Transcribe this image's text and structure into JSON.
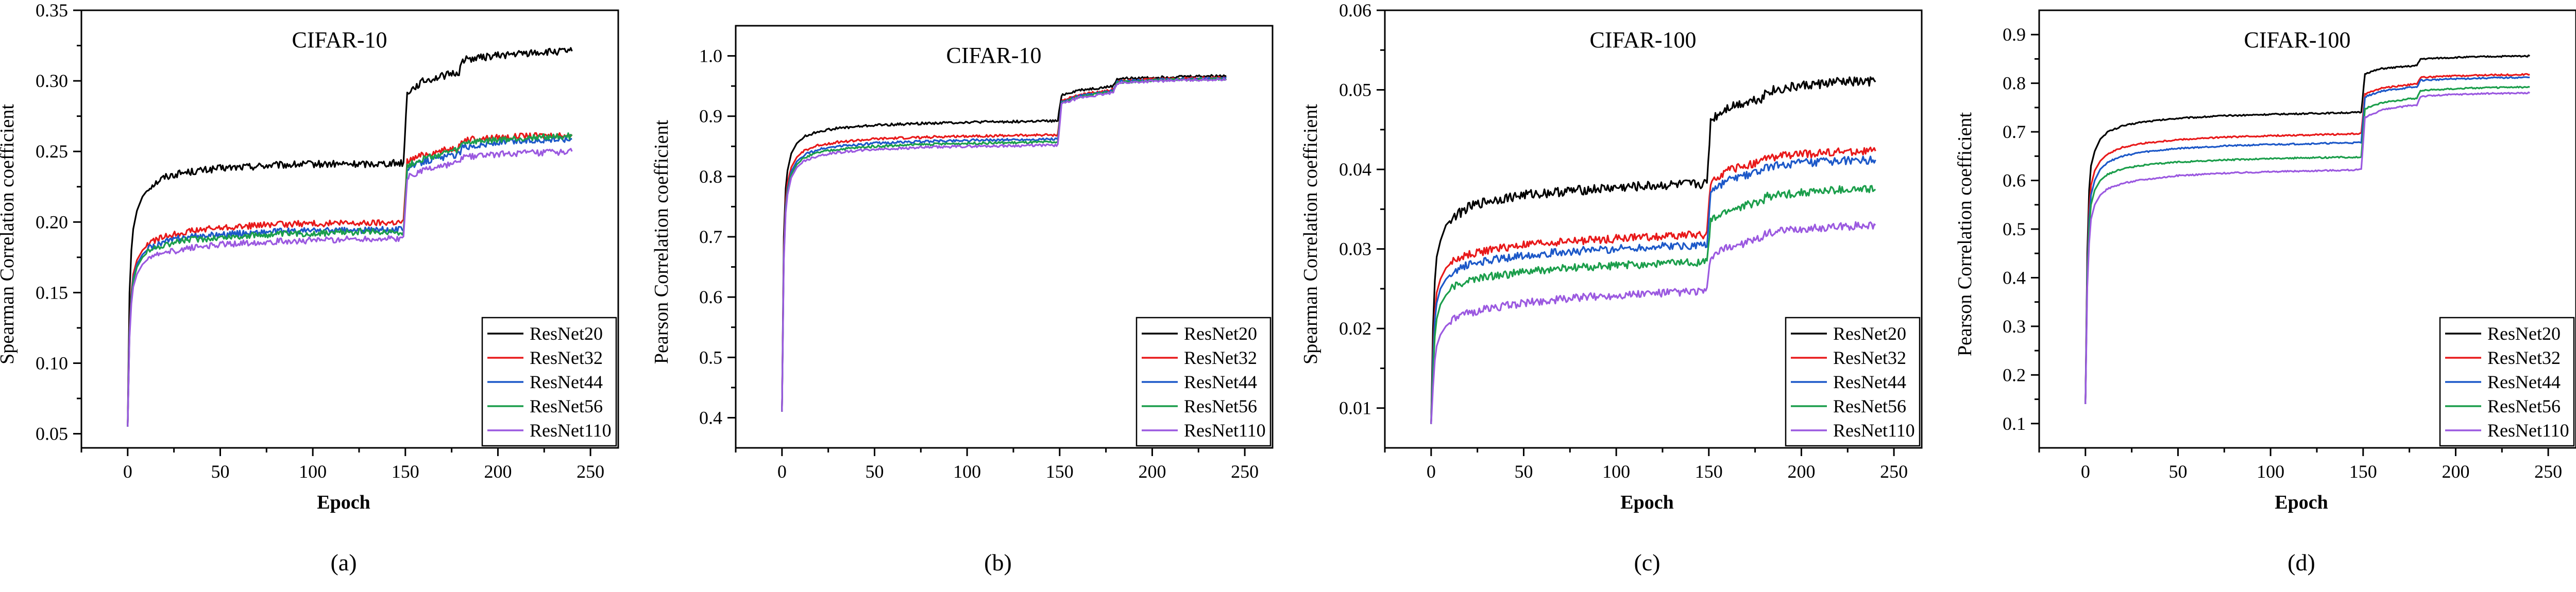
{
  "chart_data": [
    {
      "type": "line",
      "title": "CIFAR-10",
      "xlabel": "Epoch",
      "ylabel": "Spearman Correlation coefficient",
      "panel_label": "(a)",
      "xlim": [
        -25,
        265
      ],
      "ylim": [
        0.04,
        0.35
      ],
      "xticks": [
        "0",
        "50",
        "100",
        "150",
        "200",
        "250"
      ],
      "yticks": [
        "0.05",
        "0.10",
        "0.15",
        "0.20",
        "0.25",
        "0.30",
        "0.35"
      ],
      "ytick_values": [
        0.05,
        0.1,
        0.15,
        0.2,
        0.25,
        0.3,
        0.35
      ],
      "legend_position": "bottom-right",
      "x": [
        0,
        1,
        2,
        3,
        5,
        8,
        12,
        20,
        30,
        50,
        75,
        100,
        125,
        149,
        151,
        160,
        175,
        179,
        181,
        200,
        220,
        240
      ],
      "series": [
        {
          "name": "ResNet20",
          "color": "#000000",
          "noise": 0.0025,
          "values": [
            0.055,
            0.15,
            0.18,
            0.195,
            0.208,
            0.218,
            0.225,
            0.232,
            0.235,
            0.238,
            0.24,
            0.241,
            0.241,
            0.242,
            0.292,
            0.3,
            0.305,
            0.306,
            0.315,
            0.318,
            0.32,
            0.321
          ]
        },
        {
          "name": "ResNet32",
          "color": "#e8191a",
          "noise": 0.0022,
          "values": [
            0.055,
            0.125,
            0.15,
            0.163,
            0.173,
            0.18,
            0.185,
            0.19,
            0.193,
            0.196,
            0.198,
            0.199,
            0.199,
            0.2,
            0.243,
            0.248,
            0.252,
            0.253,
            0.258,
            0.26,
            0.261,
            0.262
          ]
        },
        {
          "name": "ResNet44",
          "color": "#1c58c8",
          "noise": 0.0022,
          "values": [
            0.055,
            0.122,
            0.147,
            0.16,
            0.17,
            0.177,
            0.182,
            0.186,
            0.189,
            0.191,
            0.193,
            0.194,
            0.194,
            0.195,
            0.238,
            0.243,
            0.247,
            0.248,
            0.253,
            0.256,
            0.258,
            0.259
          ]
        },
        {
          "name": "ResNet56",
          "color": "#1b9e4b",
          "noise": 0.0022,
          "values": [
            0.055,
            0.12,
            0.145,
            0.158,
            0.168,
            0.175,
            0.18,
            0.184,
            0.187,
            0.189,
            0.191,
            0.192,
            0.193,
            0.193,
            0.24,
            0.245,
            0.25,
            0.251,
            0.256,
            0.258,
            0.26,
            0.261
          ]
        },
        {
          "name": "ResNet110",
          "color": "#9b59e0",
          "noise": 0.0022,
          "values": [
            0.055,
            0.118,
            0.142,
            0.154,
            0.163,
            0.17,
            0.175,
            0.178,
            0.181,
            0.184,
            0.186,
            0.187,
            0.188,
            0.188,
            0.232,
            0.237,
            0.241,
            0.242,
            0.246,
            0.248,
            0.249,
            0.25
          ]
        }
      ]
    },
    {
      "type": "line",
      "title": "CIFAR-10",
      "xlabel": "",
      "ylabel": "Pearson Correlation coefficient",
      "panel_label": "(b)",
      "xlim": [
        -25,
        265
      ],
      "ylim": [
        0.35,
        1.05
      ],
      "xticks": [
        "0",
        "50",
        "100",
        "150",
        "200",
        "250"
      ],
      "yticks": [
        "0.4",
        "0.5",
        "0.6",
        "0.7",
        "0.8",
        "0.9",
        "1.0"
      ],
      "ytick_values": [
        0.4,
        0.5,
        0.6,
        0.7,
        0.8,
        0.9,
        1.0
      ],
      "legend_position": "bottom-right",
      "x": [
        0,
        1,
        2,
        3,
        5,
        8,
        12,
        20,
        30,
        50,
        75,
        100,
        125,
        149,
        151,
        160,
        175,
        179,
        181,
        200,
        220,
        240
      ],
      "series": [
        {
          "name": "ResNet20",
          "color": "#000000",
          "noise": 0.002,
          "values": [
            0.41,
            0.7,
            0.78,
            0.81,
            0.838,
            0.855,
            0.866,
            0.875,
            0.88,
            0.885,
            0.888,
            0.89,
            0.891,
            0.892,
            0.935,
            0.943,
            0.948,
            0.95,
            0.962,
            0.964,
            0.966,
            0.967
          ]
        },
        {
          "name": "ResNet32",
          "color": "#e8191a",
          "noise": 0.002,
          "values": [
            0.41,
            0.68,
            0.76,
            0.79,
            0.815,
            0.832,
            0.843,
            0.852,
            0.857,
            0.862,
            0.865,
            0.867,
            0.868,
            0.869,
            0.925,
            0.935,
            0.942,
            0.944,
            0.958,
            0.961,
            0.963,
            0.964
          ]
        },
        {
          "name": "ResNet44",
          "color": "#1c58c8",
          "noise": 0.002,
          "values": [
            0.41,
            0.67,
            0.75,
            0.78,
            0.808,
            0.825,
            0.836,
            0.845,
            0.85,
            0.855,
            0.858,
            0.86,
            0.861,
            0.862,
            0.923,
            0.933,
            0.94,
            0.942,
            0.957,
            0.96,
            0.962,
            0.963
          ]
        },
        {
          "name": "ResNet56",
          "color": "#1b9e4b",
          "noise": 0.002,
          "values": [
            0.41,
            0.665,
            0.745,
            0.775,
            0.803,
            0.82,
            0.831,
            0.84,
            0.845,
            0.85,
            0.853,
            0.855,
            0.856,
            0.857,
            0.922,
            0.932,
            0.939,
            0.941,
            0.956,
            0.959,
            0.961,
            0.962
          ]
        },
        {
          "name": "ResNet110",
          "color": "#9b59e0",
          "noise": 0.002,
          "values": [
            0.41,
            0.66,
            0.74,
            0.77,
            0.798,
            0.815,
            0.826,
            0.835,
            0.84,
            0.845,
            0.848,
            0.85,
            0.851,
            0.852,
            0.92,
            0.93,
            0.937,
            0.939,
            0.955,
            0.958,
            0.96,
            0.961
          ]
        }
      ]
    },
    {
      "type": "line",
      "title": "CIFAR-100",
      "xlabel": "Epoch",
      "ylabel": "Spearman Correlation coefficient",
      "panel_label": "(c)",
      "xlim": [
        -25,
        265
      ],
      "ylim": [
        0.005,
        0.06
      ],
      "xticks": [
        "0",
        "50",
        "100",
        "150",
        "200",
        "250"
      ],
      "yticks": [
        "0.01",
        "0.02",
        "0.03",
        "0.04",
        "0.05",
        "0.06"
      ],
      "ytick_values": [
        0.01,
        0.02,
        0.03,
        0.04,
        0.05,
        0.06
      ],
      "legend_position": "bottom-right",
      "x": [
        0,
        1,
        2,
        3,
        5,
        8,
        12,
        20,
        30,
        50,
        75,
        100,
        125,
        149,
        151,
        160,
        175,
        179,
        181,
        200,
        220,
        240
      ],
      "series": [
        {
          "name": "ResNet20",
          "color": "#000000",
          "noise": 0.0006,
          "values": [
            0.008,
            0.02,
            0.026,
            0.029,
            0.031,
            0.033,
            0.034,
            0.0352,
            0.036,
            0.0368,
            0.0373,
            0.0377,
            0.038,
            0.0382,
            0.0462,
            0.0478,
            0.0488,
            0.049,
            0.0498,
            0.0505,
            0.051,
            0.051
          ]
        },
        {
          "name": "ResNet32",
          "color": "#e8191a",
          "noise": 0.0005,
          "values": [
            0.008,
            0.017,
            0.022,
            0.0245,
            0.0262,
            0.0276,
            0.0285,
            0.0293,
            0.0298,
            0.0305,
            0.031,
            0.0313,
            0.0316,
            0.0318,
            0.0385,
            0.0398,
            0.0408,
            0.041,
            0.0415,
            0.0419,
            0.0422,
            0.0423
          ]
        },
        {
          "name": "ResNet44",
          "color": "#1c58c8",
          "noise": 0.0005,
          "values": [
            0.008,
            0.016,
            0.021,
            0.0232,
            0.025,
            0.0262,
            0.0272,
            0.028,
            0.0285,
            0.0292,
            0.0297,
            0.03,
            0.0303,
            0.0305,
            0.0372,
            0.0386,
            0.0396,
            0.0398,
            0.0403,
            0.0408,
            0.0411,
            0.0412
          ]
        },
        {
          "name": "ResNet56",
          "color": "#1b9e4b",
          "noise": 0.0005,
          "values": [
            0.008,
            0.0145,
            0.019,
            0.0212,
            0.023,
            0.0242,
            0.0252,
            0.026,
            0.0265,
            0.0271,
            0.0276,
            0.0279,
            0.0282,
            0.0284,
            0.0335,
            0.0348,
            0.0358,
            0.036,
            0.0366,
            0.0371,
            0.0374,
            0.0375
          ]
        },
        {
          "name": "ResNet110",
          "color": "#9b59e0",
          "noise": 0.0005,
          "values": [
            0.008,
            0.0125,
            0.016,
            0.0178,
            0.0192,
            0.0203,
            0.0211,
            0.0219,
            0.0225,
            0.0232,
            0.0238,
            0.0242,
            0.0245,
            0.0247,
            0.029,
            0.0302,
            0.0311,
            0.0313,
            0.032,
            0.0325,
            0.0328,
            0.033
          ]
        }
      ]
    },
    {
      "type": "line",
      "title": "CIFAR-100",
      "xlabel": "Epoch",
      "ylabel": "Pearson Correlation coefficient",
      "panel_label": "(d)",
      "xlim": [
        -25,
        265
      ],
      "ylim": [
        0.05,
        0.95
      ],
      "xticks": [
        "0",
        "50",
        "100",
        "150",
        "200",
        "250"
      ],
      "yticks": [
        "0.1",
        "0.2",
        "0.3",
        "0.4",
        "0.5",
        "0.6",
        "0.7",
        "0.8",
        "0.9"
      ],
      "ytick_values": [
        0.1,
        0.2,
        0.3,
        0.4,
        0.5,
        0.6,
        0.7,
        0.8,
        0.9
      ],
      "legend_position": "bottom-right",
      "x": [
        0,
        1,
        2,
        3,
        5,
        8,
        12,
        20,
        30,
        50,
        75,
        100,
        125,
        149,
        151,
        160,
        175,
        179,
        181,
        200,
        220,
        240
      ],
      "series": [
        {
          "name": "ResNet20",
          "color": "#000000",
          "noise": 0.0015,
          "values": [
            0.14,
            0.45,
            0.58,
            0.63,
            0.66,
            0.685,
            0.7,
            0.712,
            0.72,
            0.728,
            0.733,
            0.736,
            0.738,
            0.74,
            0.82,
            0.83,
            0.835,
            0.836,
            0.85,
            0.853,
            0.855,
            0.856
          ]
        },
        {
          "name": "ResNet32",
          "color": "#e8191a",
          "noise": 0.0015,
          "values": [
            0.14,
            0.42,
            0.54,
            0.59,
            0.62,
            0.64,
            0.655,
            0.668,
            0.676,
            0.684,
            0.689,
            0.692,
            0.694,
            0.696,
            0.778,
            0.79,
            0.797,
            0.798,
            0.812,
            0.815,
            0.817,
            0.818
          ]
        },
        {
          "name": "ResNet44",
          "color": "#1c58c8",
          "noise": 0.0015,
          "values": [
            0.14,
            0.41,
            0.52,
            0.57,
            0.6,
            0.623,
            0.638,
            0.65,
            0.658,
            0.666,
            0.671,
            0.674,
            0.676,
            0.678,
            0.772,
            0.784,
            0.791,
            0.792,
            0.806,
            0.809,
            0.811,
            0.812
          ]
        },
        {
          "name": "ResNet56",
          "color": "#1b9e4b",
          "noise": 0.0015,
          "values": [
            0.14,
            0.4,
            0.5,
            0.55,
            0.58,
            0.6,
            0.613,
            0.624,
            0.631,
            0.638,
            0.642,
            0.645,
            0.647,
            0.648,
            0.748,
            0.76,
            0.768,
            0.769,
            0.785,
            0.789,
            0.791,
            0.792
          ]
        },
        {
          "name": "ResNet110",
          "color": "#9b59e0",
          "noise": 0.0015,
          "values": [
            0.14,
            0.38,
            0.47,
            0.52,
            0.55,
            0.57,
            0.583,
            0.594,
            0.601,
            0.61,
            0.615,
            0.618,
            0.62,
            0.622,
            0.73,
            0.745,
            0.754,
            0.755,
            0.773,
            0.777,
            0.779,
            0.78
          ]
        }
      ]
    }
  ]
}
